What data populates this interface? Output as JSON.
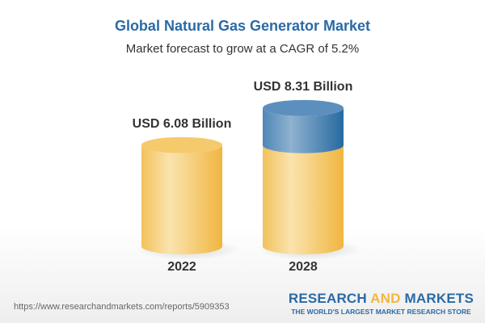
{
  "title": "Global Natural Gas Generator Market",
  "subtitle": "Market forecast to grow at a CAGR of 5.2%",
  "chart_data": {
    "type": "bar",
    "style": "3d-cylinder",
    "categories": [
      "2022",
      "2028"
    ],
    "values": [
      6.08,
      8.31
    ],
    "data_labels": [
      "USD 6.08 Billion",
      "USD 8.31 Billion"
    ],
    "unit": "USD Billion",
    "growth_segment_highlight": true,
    "colors": {
      "base": "#f3c35a",
      "growth": "#4f86b8"
    },
    "xlabel": "",
    "ylabel": ""
  },
  "footer": {
    "url": "https://www.researchandmarkets.com/reports/5909353",
    "logo_part1": "RESEARCH ",
    "logo_part2": "AND",
    "logo_part3": " MARKETS",
    "tagline": "THE WORLD'S LARGEST MARKET RESEARCH STORE"
  }
}
